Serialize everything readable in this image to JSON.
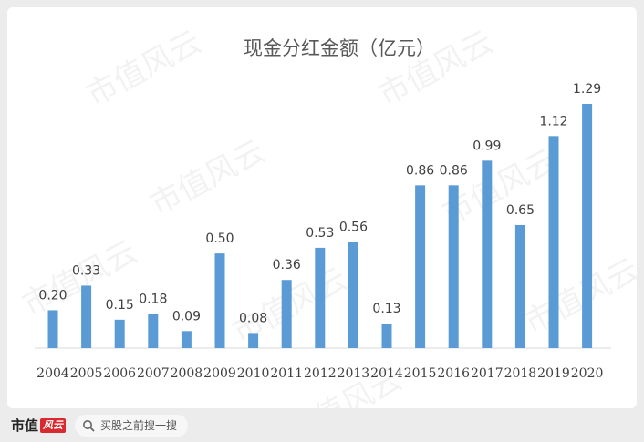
{
  "chart_data": {
    "type": "bar",
    "title": "现金分红金额（亿元）",
    "categories": [
      "2004",
      "2005",
      "2006",
      "2007",
      "2008",
      "2009",
      "2010",
      "2011",
      "2012",
      "2013",
      "2014",
      "2015",
      "2016",
      "2017",
      "2018",
      "2019",
      "2020"
    ],
    "values": [
      0.2,
      0.33,
      0.15,
      0.18,
      0.09,
      0.5,
      0.08,
      0.36,
      0.53,
      0.56,
      0.13,
      0.86,
      0.86,
      0.99,
      0.65,
      1.12,
      1.29
    ],
    "labels": [
      "0.20",
      "0.33",
      "0.15",
      "0.18",
      "0.09",
      "0.50",
      "0.08",
      "0.36",
      "0.53",
      "0.56",
      "0.13",
      "0.86",
      "0.86",
      "0.99",
      "0.65",
      "1.12",
      "1.29"
    ],
    "ylim": [
      0,
      1.29
    ],
    "grid": false,
    "bar_color": "#5b9bd5"
  },
  "watermark": "市值风云",
  "footer": {
    "brand_text": "市值",
    "brand_mark": "风云",
    "search_text": "买股之前搜一搜"
  },
  "colors": {
    "title": "#595959",
    "label": "#404040",
    "axis": "#d9d9d9"
  }
}
